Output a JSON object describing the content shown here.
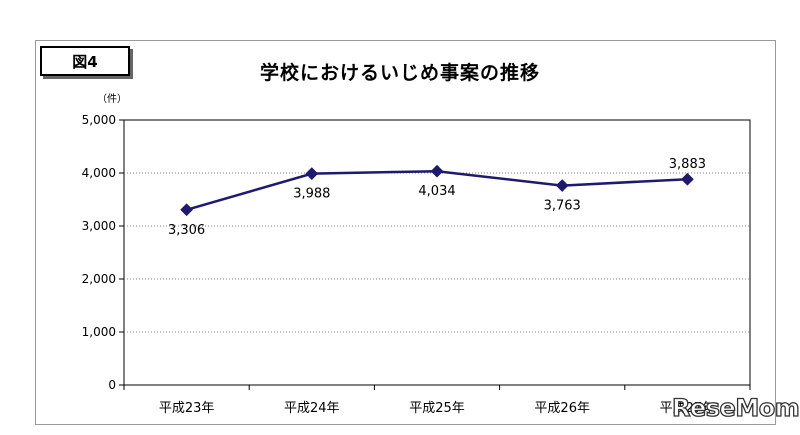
{
  "figure_label": "図4",
  "chart_data": {
    "type": "line",
    "title": "学校におけるいじめ事案の推移",
    "ylabel": "（件）",
    "xlabel": "",
    "categories": [
      "平成23年",
      "平成24年",
      "平成25年",
      "平成26年",
      "平成27年"
    ],
    "series": [
      {
        "values": [
          3306,
          3988,
          4034,
          3763,
          3883
        ]
      }
    ],
    "data_labels": [
      "3,306",
      "3,988",
      "4,034",
      "3,763",
      "3,883"
    ],
    "yticks": [
      "0",
      "1,000",
      "2,000",
      "3,000",
      "4,000",
      "5,000"
    ],
    "ylim": [
      0,
      5000
    ],
    "grid": true,
    "line_color": "#1f1a6e"
  },
  "watermark": "ReseMom"
}
